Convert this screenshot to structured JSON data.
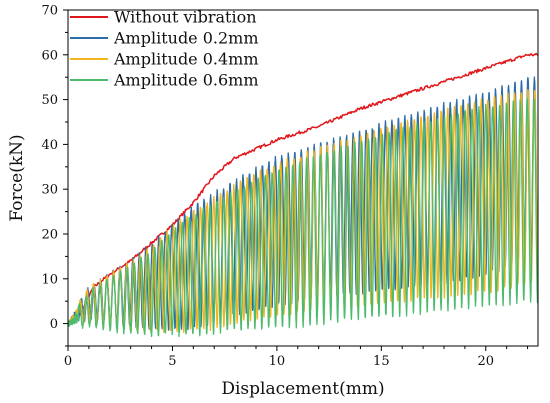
{
  "chart_data": {
    "type": "line",
    "xlabel": "Displacement(mm)",
    "ylabel": "Force(kN)",
    "xlim": [
      0,
      22.5
    ],
    "ylim": [
      -5,
      70
    ],
    "xticks": [
      0,
      5,
      10,
      15,
      20
    ],
    "yticks": [
      0,
      10,
      20,
      30,
      40,
      50,
      60,
      70
    ],
    "legend_position": "top-left",
    "grid": false,
    "series": [
      {
        "name": "Without vibration",
        "color": "#e0161b",
        "oscillating": false,
        "envelope_top": [
          [
            0,
            0
          ],
          [
            0.4,
            0.5
          ],
          [
            0.8,
            4
          ],
          [
            1.2,
            8
          ],
          [
            2,
            11
          ],
          [
            3,
            14
          ],
          [
            4,
            18
          ],
          [
            5,
            22
          ],
          [
            6,
            27
          ],
          [
            7,
            33
          ],
          [
            8,
            37
          ],
          [
            9,
            39
          ],
          [
            10,
            41
          ],
          [
            12,
            44
          ],
          [
            14,
            48
          ],
          [
            16,
            51
          ],
          [
            18,
            54
          ],
          [
            20,
            57
          ],
          [
            22,
            60
          ]
        ]
      },
      {
        "name": "Amplitude 0.2mm",
        "color": "#2e6ea6",
        "oscillating": true,
        "envelope_top": [
          [
            0,
            0.5
          ],
          [
            1,
            8
          ],
          [
            2,
            11
          ],
          [
            3,
            14
          ],
          [
            4,
            17.5
          ],
          [
            5,
            22
          ],
          [
            6,
            26
          ],
          [
            7,
            29
          ],
          [
            8,
            32
          ],
          [
            9,
            34.5
          ],
          [
            10,
            37
          ],
          [
            12,
            40
          ],
          [
            14,
            43
          ],
          [
            16,
            46
          ],
          [
            18,
            49
          ],
          [
            20,
            51.5
          ],
          [
            22,
            55
          ]
        ],
        "envelope_bottom": [
          [
            0,
            -0.5
          ],
          [
            1,
            1
          ],
          [
            2,
            0
          ],
          [
            3,
            -0.5
          ],
          [
            4,
            -1
          ],
          [
            5,
            -1
          ],
          [
            6,
            -1
          ],
          [
            7,
            0
          ],
          [
            8,
            2
          ],
          [
            10,
            4
          ],
          [
            12,
            6
          ],
          [
            14,
            7
          ],
          [
            16,
            8
          ],
          [
            18,
            9
          ],
          [
            20,
            11
          ],
          [
            22,
            14
          ]
        ]
      },
      {
        "name": "Amplitude 0.4mm",
        "color": "#f2b51b",
        "oscillating": true,
        "envelope_top": [
          [
            0,
            0.5
          ],
          [
            1,
            8
          ],
          [
            2,
            11
          ],
          [
            3,
            13.5
          ],
          [
            4,
            17
          ],
          [
            5,
            21.5
          ],
          [
            6,
            25
          ],
          [
            7,
            28
          ],
          [
            8,
            31
          ],
          [
            9,
            33.5
          ],
          [
            10,
            35.5
          ],
          [
            12,
            39
          ],
          [
            14,
            42
          ],
          [
            16,
            45
          ],
          [
            18,
            47.5
          ],
          [
            20,
            50
          ],
          [
            22,
            52
          ]
        ],
        "envelope_bottom": [
          [
            0,
            -0.5
          ],
          [
            1,
            0.5
          ],
          [
            2,
            -0.5
          ],
          [
            3,
            -1
          ],
          [
            4,
            -1.5
          ],
          [
            5,
            -1.5
          ],
          [
            6,
            -1.5
          ],
          [
            7,
            -1
          ],
          [
            8,
            0
          ],
          [
            10,
            2
          ],
          [
            12,
            3
          ],
          [
            14,
            4
          ],
          [
            16,
            5
          ],
          [
            18,
            6
          ],
          [
            20,
            7
          ],
          [
            22,
            9
          ]
        ]
      },
      {
        "name": "Amplitude 0.6mm",
        "color": "#4dbb6d",
        "oscillating": true,
        "envelope_top": [
          [
            0,
            0.5
          ],
          [
            1,
            7
          ],
          [
            2,
            10
          ],
          [
            3,
            13
          ],
          [
            4,
            16
          ],
          [
            5,
            20.5
          ],
          [
            6,
            24
          ],
          [
            7,
            27
          ],
          [
            8,
            29.5
          ],
          [
            9,
            32
          ],
          [
            10,
            34
          ],
          [
            12,
            37.5
          ],
          [
            14,
            40.5
          ],
          [
            16,
            43.5
          ],
          [
            18,
            46
          ],
          [
            20,
            48.5
          ],
          [
            22,
            50
          ]
        ],
        "envelope_bottom": [
          [
            0,
            -1
          ],
          [
            1,
            -0.5
          ],
          [
            2,
            -1.5
          ],
          [
            3,
            -2
          ],
          [
            4,
            -2.5
          ],
          [
            5,
            -2.5
          ],
          [
            6,
            -2.5
          ],
          [
            7,
            -2
          ],
          [
            8,
            -1.5
          ],
          [
            10,
            -1
          ],
          [
            12,
            0
          ],
          [
            14,
            1
          ],
          [
            16,
            2
          ],
          [
            18,
            3
          ],
          [
            20,
            4
          ],
          [
            22,
            5
          ]
        ]
      }
    ]
  }
}
